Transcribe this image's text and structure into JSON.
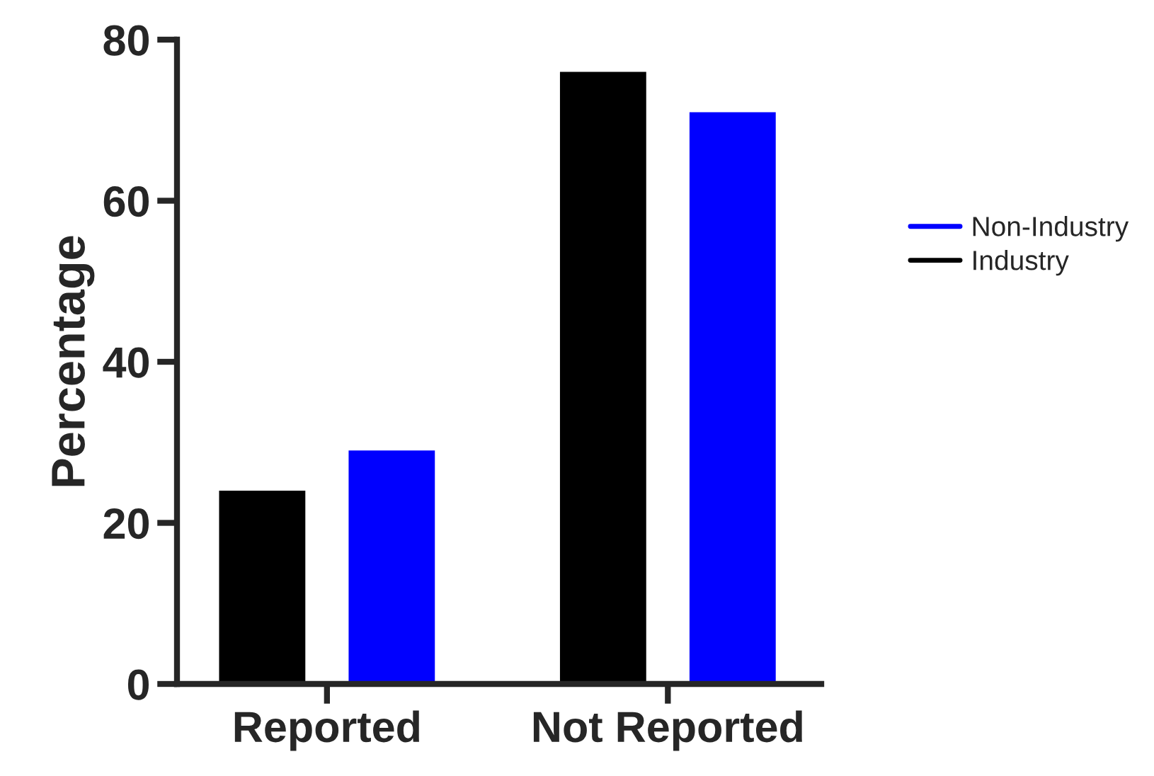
{
  "chart_data": {
    "type": "bar",
    "ylabel": "Percentage",
    "categories": [
      "Reported",
      "Not Reported"
    ],
    "series": [
      {
        "name": "Industry",
        "color": "#000000",
        "values": [
          24,
          76
        ]
      },
      {
        "name": "Non-Industry",
        "color": "#0000ff",
        "values": [
          29,
          71
        ]
      }
    ],
    "ylim": [
      0,
      80
    ],
    "yticks": [
      0,
      20,
      40,
      60,
      80
    ],
    "grid": false,
    "legend": "right"
  }
}
